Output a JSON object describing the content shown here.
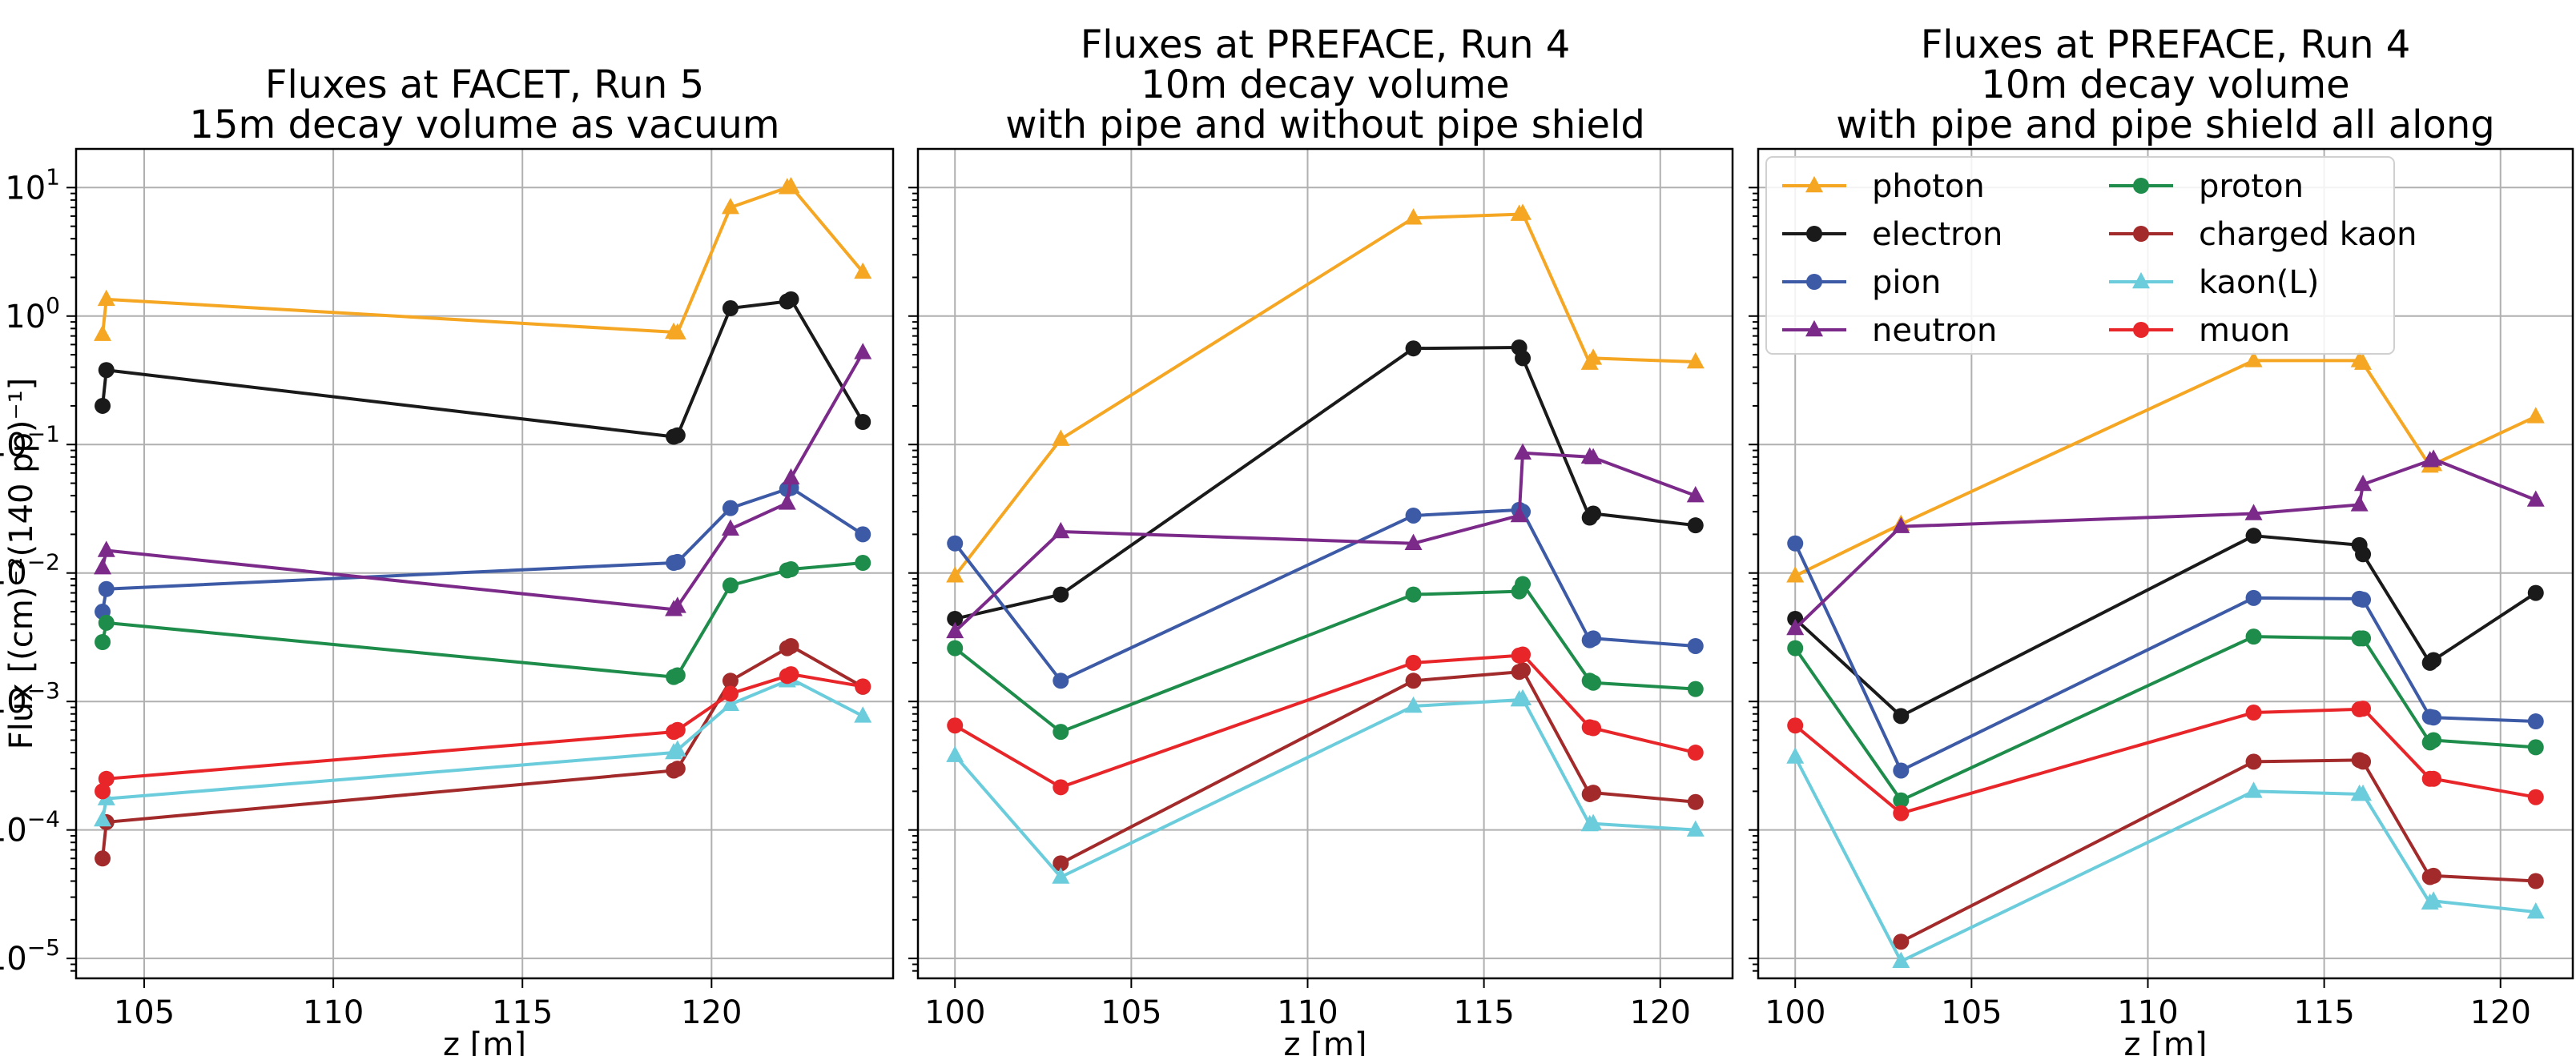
{
  "chart_data": [
    {
      "type": "line",
      "title": [
        "Fluxes at FACET, Run 5",
        "15m decay volume as vacuum"
      ],
      "xlabel": "z [m]",
      "ylabel": "Flux [(cm)⁻²(140 pp)⁻¹]",
      "yscale": "log",
      "ylim": [
        7e-06,
        20
      ],
      "xlim": [
        103.2,
        124.8
      ],
      "xticks": [
        105,
        110,
        115,
        120
      ],
      "xtick_labels": [
        "105",
        "110",
        "115",
        "120"
      ],
      "ytick_exps": [
        -5,
        -4,
        -3,
        -2,
        -1,
        0,
        1
      ],
      "series": [
        {
          "name": "photon",
          "color": "#f5a623",
          "marker": "triangle",
          "x": [
            103.9,
            104.0,
            119.0,
            119.1,
            120.5,
            122.0,
            122.1,
            124.0
          ],
          "y": [
            0.72,
            1.35,
            0.75,
            0.74,
            7.0,
            10.0,
            10.2,
            2.2
          ]
        },
        {
          "name": "electron",
          "color": "#1a1a1a",
          "marker": "circle",
          "x": [
            103.9,
            104.0,
            119.0,
            119.1,
            120.5,
            122.0,
            122.1,
            124.0
          ],
          "y": [
            0.2,
            0.38,
            0.115,
            0.118,
            1.15,
            1.3,
            1.35,
            0.15
          ]
        },
        {
          "name": "pion",
          "color": "#3c5aa6",
          "marker": "circle",
          "x": [
            103.9,
            104.0,
            119.0,
            119.1,
            120.5,
            122.0,
            122.1,
            124.0
          ],
          "y": [
            0.005,
            0.0075,
            0.012,
            0.0122,
            0.032,
            0.045,
            0.046,
            0.02
          ]
        },
        {
          "name": "neutron",
          "color": "#7b2a8a",
          "marker": "triangle",
          "x": [
            103.9,
            104.0,
            119.0,
            119.1,
            120.5,
            122.0,
            122.1,
            124.0
          ],
          "y": [
            0.011,
            0.015,
            0.0052,
            0.0055,
            0.022,
            0.035,
            0.055,
            0.52
          ]
        },
        {
          "name": "proton",
          "color": "#1e8c4a",
          "marker": "circle",
          "x": [
            103.9,
            104.0,
            119.0,
            119.1,
            120.5,
            122.0,
            122.1,
            124.0
          ],
          "y": [
            0.0029,
            0.0041,
            0.00155,
            0.0016,
            0.008,
            0.0105,
            0.0107,
            0.012
          ]
        },
        {
          "name": "charged kaon",
          "color": "#a32a2a",
          "marker": "circle",
          "x": [
            103.9,
            104.0,
            119.0,
            119.1,
            120.5,
            122.0,
            122.1,
            124.0
          ],
          "y": [
            6e-05,
            0.000115,
            0.00029,
            0.0003,
            0.00145,
            0.0026,
            0.0027,
            0.0013
          ]
        },
        {
          "name": "kaon(L)",
          "color": "#6bccdc",
          "marker": "triangle",
          "x": [
            103.9,
            104.0,
            119.0,
            119.1,
            120.5,
            122.0,
            122.1,
            124.0
          ],
          "y": [
            0.00012,
            0.000175,
            0.0004,
            0.00042,
            0.00095,
            0.00145,
            0.0015,
            0.00077
          ]
        },
        {
          "name": "muon",
          "color": "#e8262a",
          "marker": "circle",
          "x": [
            103.9,
            104.0,
            119.0,
            119.1,
            120.5,
            122.0,
            122.1,
            124.0
          ],
          "y": [
            0.0002,
            0.00025,
            0.00058,
            0.0006,
            0.00115,
            0.00158,
            0.00163,
            0.00131
          ]
        }
      ]
    },
    {
      "type": "line",
      "title": [
        "Fluxes at PREFACE, Run 4",
        "10m decay volume",
        "with pipe and without pipe shield"
      ],
      "xlabel": "z [m]",
      "yscale": "log",
      "ylim": [
        7e-06,
        20
      ],
      "xlim": [
        98.95,
        122.05
      ],
      "xticks": [
        100,
        105,
        110,
        115,
        120
      ],
      "xtick_labels": [
        "100",
        "105",
        "110",
        "115",
        "120"
      ],
      "series": [
        {
          "name": "photon",
          "color": "#f5a623",
          "marker": "triangle",
          "x": [
            100,
            103,
            113,
            116,
            116.1,
            118,
            118.1,
            121
          ],
          "y": [
            0.0095,
            0.11,
            5.8,
            6.2,
            6.3,
            0.43,
            0.47,
            0.44
          ]
        },
        {
          "name": "electron",
          "color": "#1a1a1a",
          "marker": "circle",
          "x": [
            100,
            103,
            113,
            116,
            116.1,
            118,
            118.1,
            121
          ],
          "y": [
            0.0044,
            0.0068,
            0.56,
            0.57,
            0.47,
            0.027,
            0.029,
            0.0235
          ]
        },
        {
          "name": "pion",
          "color": "#3c5aa6",
          "marker": "circle",
          "x": [
            100,
            103,
            113,
            116,
            116.1,
            118,
            118.1,
            121
          ],
          "y": [
            0.017,
            0.00145,
            0.028,
            0.031,
            0.03,
            0.003,
            0.0031,
            0.0027
          ]
        },
        {
          "name": "neutron",
          "color": "#7b2a8a",
          "marker": "triangle",
          "x": [
            100,
            103,
            113,
            116,
            116.1,
            118,
            118.1,
            121
          ],
          "y": [
            0.0035,
            0.021,
            0.017,
            0.028,
            0.086,
            0.08,
            0.079,
            0.04
          ]
        },
        {
          "name": "proton",
          "color": "#1e8c4a",
          "marker": "circle",
          "x": [
            100,
            103,
            113,
            116,
            116.1,
            118,
            118.1,
            121
          ],
          "y": [
            0.0026,
            0.00058,
            0.0068,
            0.0072,
            0.0082,
            0.00145,
            0.0014,
            0.00125
          ]
        },
        {
          "name": "charged kaon",
          "color": "#a32a2a",
          "marker": "circle",
          "x": [
            103,
            113,
            116,
            116.1,
            118,
            118.1,
            121
          ],
          "y": [
            5.5e-05,
            0.00145,
            0.0017,
            0.00175,
            0.00019,
            0.000195,
            0.000165
          ]
        },
        {
          "name": "kaon(L)",
          "color": "#6bccdc",
          "marker": "triangle",
          "x": [
            100,
            103,
            113,
            116,
            116.1,
            118,
            118.1,
            121
          ],
          "y": [
            0.00038,
            4.3e-05,
            0.00092,
            0.00103,
            0.00105,
            0.00011,
            0.000112,
            0.0001
          ]
        },
        {
          "name": "muon",
          "color": "#e8262a",
          "marker": "circle",
          "x": [
            100,
            103,
            113,
            116,
            116.1,
            118,
            118.1,
            121
          ],
          "y": [
            0.00065,
            0.000215,
            0.002,
            0.00228,
            0.00232,
            0.00063,
            0.00062,
            0.0004
          ]
        }
      ]
    },
    {
      "type": "line",
      "title": [
        "Fluxes at PREFACE, Run 4",
        "10m decay volume",
        "with pipe and pipe shield all along"
      ],
      "xlabel": "z [m]",
      "yscale": "log",
      "ylim": [
        7e-06,
        20
      ],
      "xlim": [
        98.95,
        122.05
      ],
      "xticks": [
        100,
        105,
        110,
        115,
        120
      ],
      "xtick_labels": [
        "100",
        "105",
        "110",
        "115",
        "120"
      ],
      "legend": {
        "location": "top-left",
        "columns": 2,
        "order": [
          "photon",
          "electron",
          "pion",
          "neutron",
          "proton",
          "charged kaon",
          "kaon(L)",
          "muon"
        ]
      },
      "series": [
        {
          "name": "photon",
          "color": "#f5a623",
          "marker": "triangle",
          "x": [
            100,
            103,
            113,
            116,
            116.1,
            118,
            118.1,
            121
          ],
          "y": [
            0.0095,
            0.024,
            0.45,
            0.45,
            0.43,
            0.068,
            0.07,
            0.165
          ]
        },
        {
          "name": "electron",
          "color": "#1a1a1a",
          "marker": "circle",
          "x": [
            100,
            103,
            113,
            116,
            116.1,
            118,
            118.1,
            121
          ],
          "y": [
            0.0044,
            0.00077,
            0.0195,
            0.0165,
            0.014,
            0.002,
            0.0021,
            0.007
          ]
        },
        {
          "name": "pion",
          "color": "#3c5aa6",
          "marker": "circle",
          "x": [
            100,
            103,
            113,
            116,
            116.1,
            118,
            118.1,
            121
          ],
          "y": [
            0.017,
            0.00029,
            0.0064,
            0.0063,
            0.0062,
            0.00076,
            0.00075,
            0.0007
          ]
        },
        {
          "name": "neutron",
          "color": "#7b2a8a",
          "marker": "triangle",
          "x": [
            100,
            103,
            113,
            116,
            116.1,
            118,
            118.1,
            121
          ],
          "y": [
            0.0037,
            0.023,
            0.029,
            0.034,
            0.049,
            0.075,
            0.077,
            0.037
          ]
        },
        {
          "name": "proton",
          "color": "#1e8c4a",
          "marker": "circle",
          "x": [
            100,
            103,
            113,
            116,
            116.1,
            118,
            118.1,
            121
          ],
          "y": [
            0.0026,
            0.00017,
            0.0032,
            0.0031,
            0.0031,
            0.00048,
            0.0005,
            0.00044
          ]
        },
        {
          "name": "charged kaon",
          "color": "#a32a2a",
          "marker": "circle",
          "x": [
            103,
            113,
            116,
            116.1,
            118,
            118.1,
            121
          ],
          "y": [
            1.35e-05,
            0.00034,
            0.00035,
            0.00034,
            4.3e-05,
            4.4e-05,
            4e-05
          ]
        },
        {
          "name": "kaon(L)",
          "color": "#6bccdc",
          "marker": "triangle",
          "x": [
            100,
            103,
            113,
            116,
            116.1,
            118,
            118.1,
            121
          ],
          "y": [
            0.00037,
            9.5e-06,
            0.0002,
            0.00019,
            0.00019,
            2.7e-05,
            2.8e-05,
            2.3e-05
          ]
        },
        {
          "name": "muon",
          "color": "#e8262a",
          "marker": "circle",
          "x": [
            100,
            103,
            113,
            116,
            116.1,
            118,
            118.1,
            121
          ],
          "y": [
            0.00065,
            0.000135,
            0.00082,
            0.00087,
            0.00088,
            0.00025,
            0.00025,
            0.00018
          ]
        }
      ]
    }
  ]
}
